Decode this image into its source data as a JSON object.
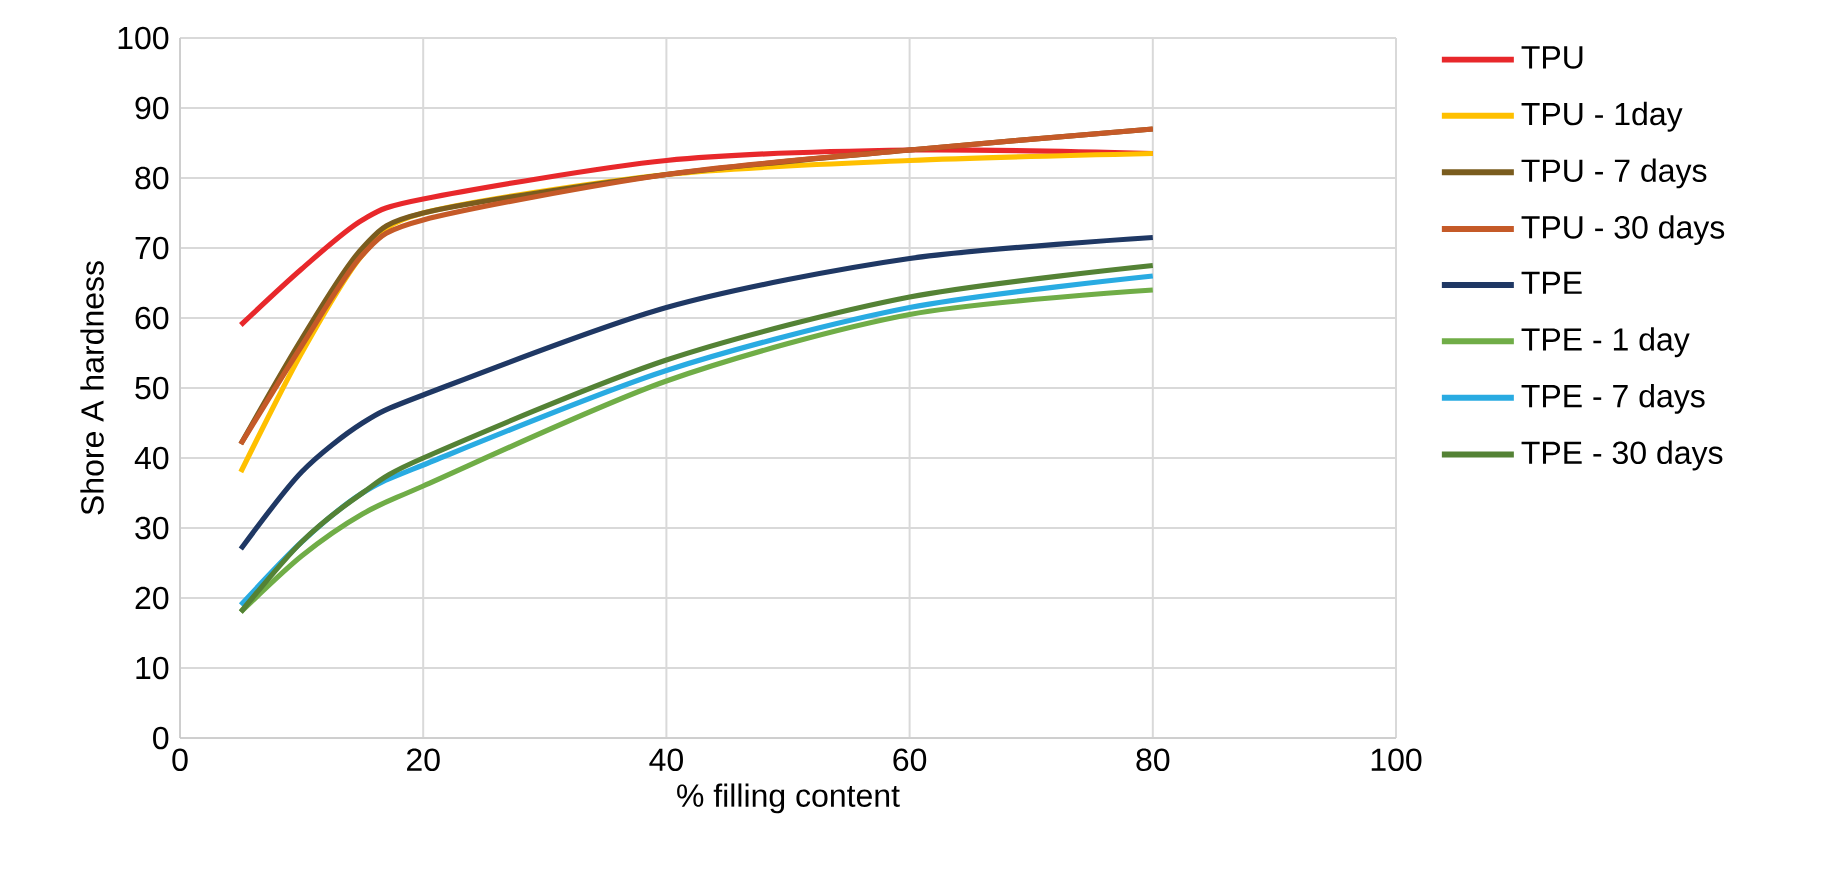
{
  "chart_data": {
    "type": "line",
    "xlabel": "% filling content",
    "ylabel": "Shore A hardness",
    "xlim": [
      0,
      100
    ],
    "ylim": [
      0,
      100
    ],
    "xticks": [
      0,
      20,
      40,
      60,
      80,
      100
    ],
    "yticks": [
      0,
      10,
      20,
      30,
      40,
      50,
      60,
      70,
      80,
      90,
      100
    ],
    "grid": true,
    "legend": "right",
    "marker": "none",
    "line_style": "solid",
    "x": [
      5,
      10,
      15,
      20,
      40,
      60,
      80
    ],
    "series": [
      {
        "name": "TPU",
        "color": "#e8282b",
        "values": [
          59,
          67,
          74,
          77,
          82.5,
          84,
          83.5
        ]
      },
      {
        "name": "TPU - 1day",
        "color": "#ffc000",
        "values": [
          38,
          55,
          69,
          75,
          80.5,
          82.5,
          83.5
        ]
      },
      {
        "name": "TPU - 7 days",
        "color": "#7a5c1e",
        "values": [
          42,
          57,
          70,
          75,
          80.5,
          84,
          87
        ]
      },
      {
        "name": "TPU - 30 days",
        "color": "#c55a28",
        "values": [
          42,
          56,
          69,
          74,
          80.5,
          84,
          87
        ]
      },
      {
        "name": "TPE",
        "color": "#1f3864",
        "values": [
          27,
          38,
          45,
          49,
          61.5,
          68.5,
          71.5
        ]
      },
      {
        "name": "TPE - 1 day",
        "color": "#70ad47",
        "values": [
          18,
          26,
          32,
          36,
          51,
          60.5,
          64
        ]
      },
      {
        "name": "TPE - 7 days",
        "color": "#29abe2",
        "values": [
          19,
          28,
          35,
          39,
          52.5,
          61.5,
          66
        ]
      },
      {
        "name": "TPE - 30 days",
        "color": "#548235",
        "values": [
          18,
          28,
          35,
          40,
          54,
          63,
          67.5
        ]
      }
    ]
  }
}
